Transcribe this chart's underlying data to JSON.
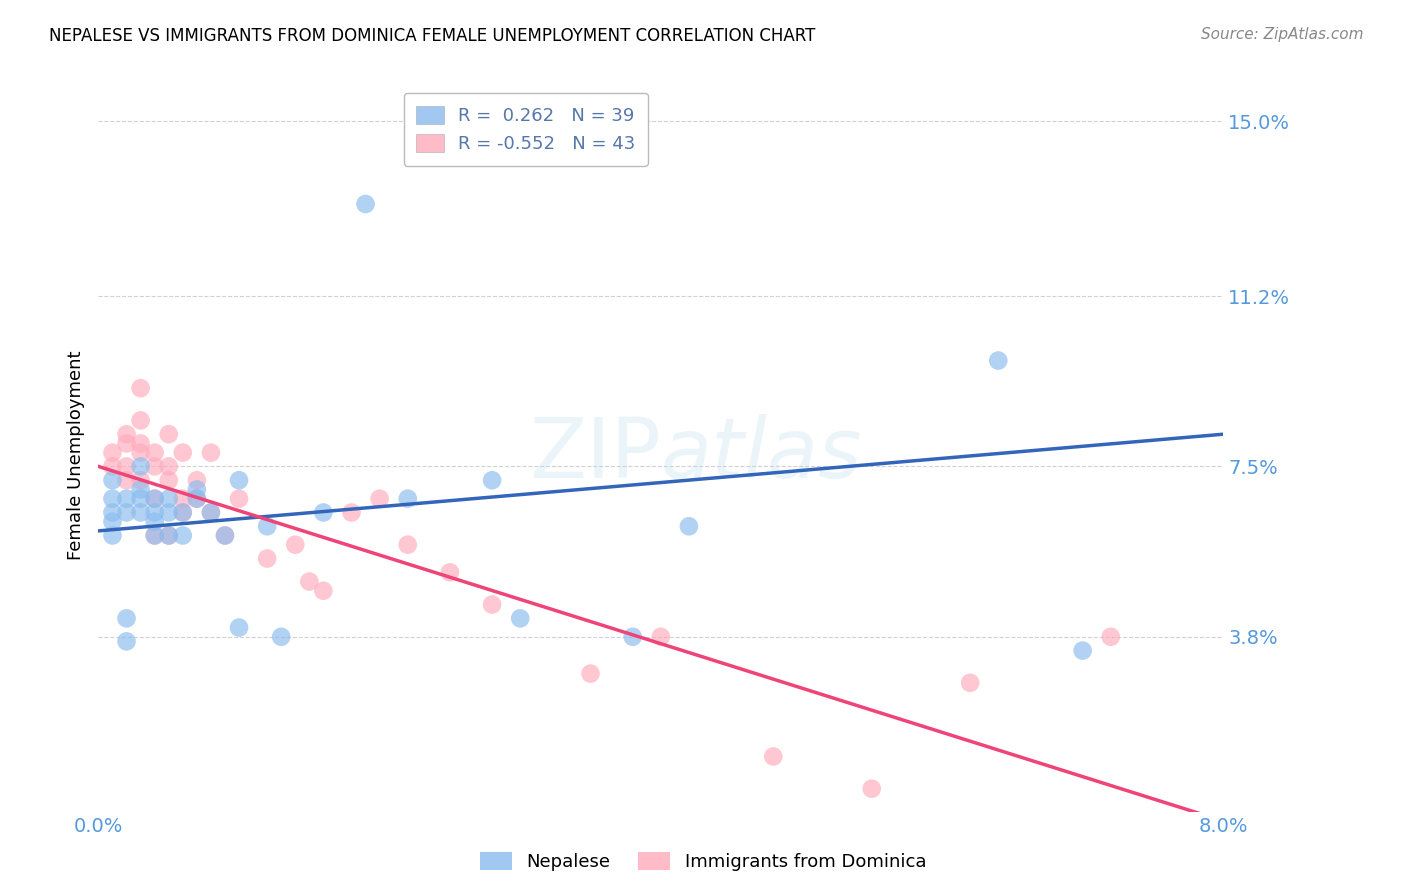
{
  "title": "NEPALESE VS IMMIGRANTS FROM DOMINICA FEMALE UNEMPLOYMENT CORRELATION CHART",
  "source": "Source: ZipAtlas.com",
  "ylabel": "Female Unemployment",
  "watermark": "ZIPatlas",
  "xlim": [
    0.0,
    0.08
  ],
  "ylim": [
    0.0,
    0.155
  ],
  "yticks": [
    0.038,
    0.075,
    0.112,
    0.15
  ],
  "ytick_labels": [
    "3.8%",
    "7.5%",
    "11.2%",
    "15.0%"
  ],
  "xticks": [
    0.0,
    0.01,
    0.02,
    0.03,
    0.04,
    0.05,
    0.06,
    0.07,
    0.08
  ],
  "xtick_labels": [
    "0.0%",
    "",
    "",
    "",
    "",
    "",
    "",
    "",
    "8.0%"
  ],
  "nepalese_R": 0.262,
  "nepalese_N": 39,
  "dominica_R": -0.552,
  "dominica_N": 43,
  "blue_color": "#88BBEE",
  "pink_color": "#FFAABB",
  "blue_line_color": "#3366BB",
  "pink_line_color": "#EE4477",
  "tick_color": "#5599DD",
  "nepalese_x": [
    0.001,
    0.001,
    0.001,
    0.001,
    0.001,
    0.002,
    0.002,
    0.002,
    0.002,
    0.003,
    0.003,
    0.003,
    0.003,
    0.004,
    0.004,
    0.004,
    0.004,
    0.005,
    0.005,
    0.005,
    0.006,
    0.006,
    0.007,
    0.007,
    0.008,
    0.009,
    0.01,
    0.01,
    0.012,
    0.013,
    0.016,
    0.019,
    0.022,
    0.028,
    0.03,
    0.038,
    0.042,
    0.064,
    0.07
  ],
  "nepalese_y": [
    0.065,
    0.068,
    0.072,
    0.06,
    0.063,
    0.065,
    0.068,
    0.042,
    0.037,
    0.07,
    0.065,
    0.068,
    0.075,
    0.063,
    0.065,
    0.068,
    0.06,
    0.06,
    0.065,
    0.068,
    0.065,
    0.06,
    0.07,
    0.068,
    0.065,
    0.06,
    0.072,
    0.04,
    0.062,
    0.038,
    0.065,
    0.132,
    0.068,
    0.072,
    0.042,
    0.038,
    0.062,
    0.098,
    0.035
  ],
  "dominica_x": [
    0.001,
    0.001,
    0.002,
    0.002,
    0.002,
    0.002,
    0.003,
    0.003,
    0.003,
    0.003,
    0.003,
    0.004,
    0.004,
    0.004,
    0.004,
    0.005,
    0.005,
    0.005,
    0.005,
    0.006,
    0.006,
    0.006,
    0.007,
    0.007,
    0.008,
    0.008,
    0.009,
    0.01,
    0.012,
    0.014,
    0.015,
    0.016,
    0.018,
    0.02,
    0.022,
    0.025,
    0.028,
    0.035,
    0.04,
    0.048,
    0.055,
    0.062,
    0.072
  ],
  "dominica_y": [
    0.078,
    0.075,
    0.082,
    0.075,
    0.072,
    0.08,
    0.078,
    0.072,
    0.08,
    0.085,
    0.092,
    0.06,
    0.075,
    0.078,
    0.068,
    0.072,
    0.075,
    0.06,
    0.082,
    0.065,
    0.068,
    0.078,
    0.068,
    0.072,
    0.065,
    0.078,
    0.06,
    0.068,
    0.055,
    0.058,
    0.05,
    0.048,
    0.065,
    0.068,
    0.058,
    0.052,
    0.045,
    0.03,
    0.038,
    0.012,
    0.005,
    0.028,
    0.038
  ],
  "blue_line_x0": 0.0,
  "blue_line_y0": 0.061,
  "blue_line_x1": 0.08,
  "blue_line_y1": 0.082,
  "pink_line_x0": 0.0,
  "pink_line_y0": 0.075,
  "pink_line_x1": 0.08,
  "pink_line_y1": -0.002,
  "background_color": "#FFFFFF",
  "grid_color": "#CCCCCC"
}
